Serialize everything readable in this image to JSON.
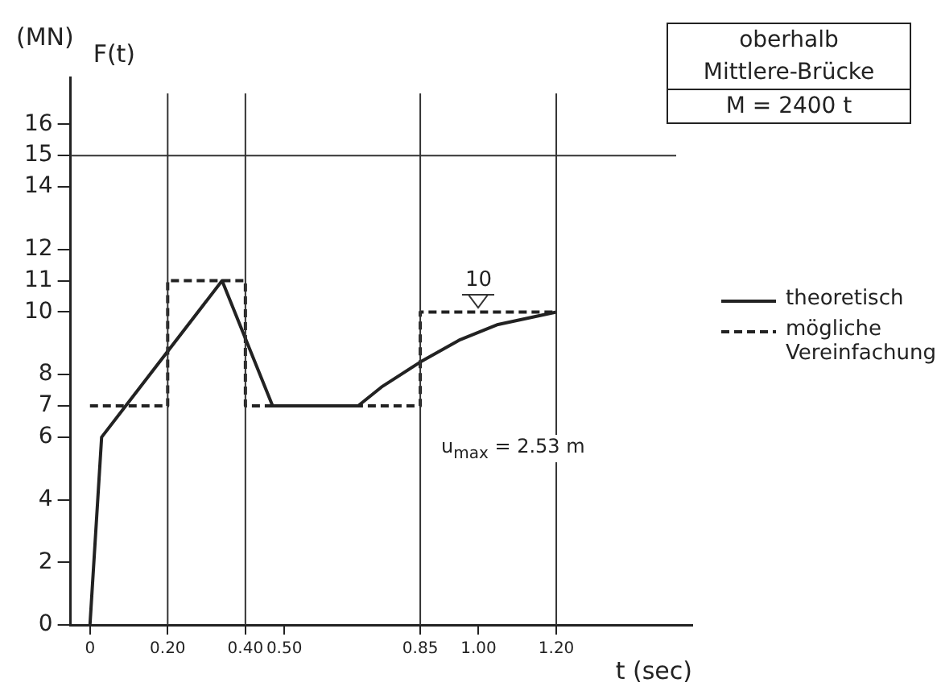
{
  "chart_data": {
    "type": "line",
    "xlabel": "t (sec)",
    "ylabel": "F(t)",
    "series": [
      {
        "name": "theoretisch",
        "color": "#222222",
        "line_style": "solid",
        "x": [
          0,
          0.03,
          0.34,
          0.47,
          0.69,
          0.75,
          0.85,
          0.95,
          1.05,
          1.2
        ],
        "values": [
          0,
          6,
          11,
          7,
          7,
          7.6,
          8.4,
          9.1,
          9.6,
          10
        ]
      },
      {
        "name": "mögliche Vereinfachung",
        "color": "#222222",
        "line_style": "dashed",
        "x": [
          0,
          0.2,
          0.2,
          0.4,
          0.4,
          0.85,
          0.85,
          1.2
        ],
        "values": [
          7,
          7,
          11,
          11,
          7,
          7,
          10,
          10
        ]
      }
    ],
    "xlim": [
      -0.05,
      1.55
    ],
    "xticks": [
      0,
      {
        "value": 0.2,
        "label": "0.20"
      },
      {
        "value": 0.4,
        "label": "0.40"
      },
      {
        "value": 0.5,
        "label": "0.50"
      },
      {
        "value": 0.85,
        "label": "0.85"
      },
      {
        "value": 1.0,
        "label": "1.00"
      },
      {
        "value": 1.2,
        "label": "1.20"
      }
    ],
    "ylim": [
      0,
      17.5
    ],
    "yticks": [
      0,
      2,
      4,
      6,
      7,
      8,
      10,
      11,
      12,
      14,
      15,
      16
    ],
    "ref_lines": [
      {
        "axis": "y",
        "value": 15,
        "label": null
      },
      {
        "axis": "x",
        "value": 0.2,
        "label": null
      },
      {
        "axis": "x",
        "value": 0.4,
        "label": null
      },
      {
        "axis": "x",
        "value": 0.85,
        "label": null
      },
      {
        "axis": "x",
        "value": 1.2,
        "label": null
      }
    ],
    "annotations": [
      "(MN)",
      "oberhalb",
      "Mittlere-Brücke",
      "M = 2400 t",
      "u$_{max}$ = 2.53 m",
      {
        "text": "10",
        "x": 1.0,
        "y": 10
      }
    ],
    "grid": false,
    "legend": "right",
    "marker": "none"
  }
}
